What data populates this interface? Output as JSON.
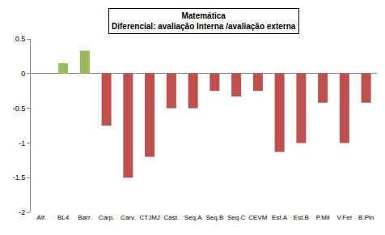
{
  "chart_data": {
    "type": "bar",
    "title": "Matemática",
    "subtitle": "Diferencial: avaliação Interna /avaliação externa",
    "categories": [
      "Alf.",
      "BL4",
      "Barr.",
      "Carp.",
      "Carv.",
      "CTJMJ",
      "Cast.",
      "Seq.A",
      "Seq.B",
      "Seq.C",
      "CEVM",
      "Est.A",
      "Est.B",
      "P.Mil",
      "V.Fer",
      "B.Pin"
    ],
    "values": [
      0,
      0.15,
      0.33,
      -0.75,
      -1.5,
      -1.2,
      -0.5,
      -0.5,
      -0.25,
      -0.33,
      -0.25,
      -1.13,
      -1.0,
      -0.42,
      -1.0,
      -0.42
    ],
    "colors": [
      "#9bbb59",
      "#9bbb59",
      "#9bbb59",
      "#c0504d",
      "#c0504d",
      "#c0504d",
      "#c0504d",
      "#c0504d",
      "#c0504d",
      "#c0504d",
      "#c0504d",
      "#c0504d",
      "#c0504d",
      "#c0504d",
      "#c0504d",
      "#c0504d"
    ],
    "ylim": [
      -2,
      0.5
    ],
    "yticks": [
      -2,
      -1.5,
      -1,
      -0.5,
      0,
      0.5
    ],
    "grid": false
  }
}
